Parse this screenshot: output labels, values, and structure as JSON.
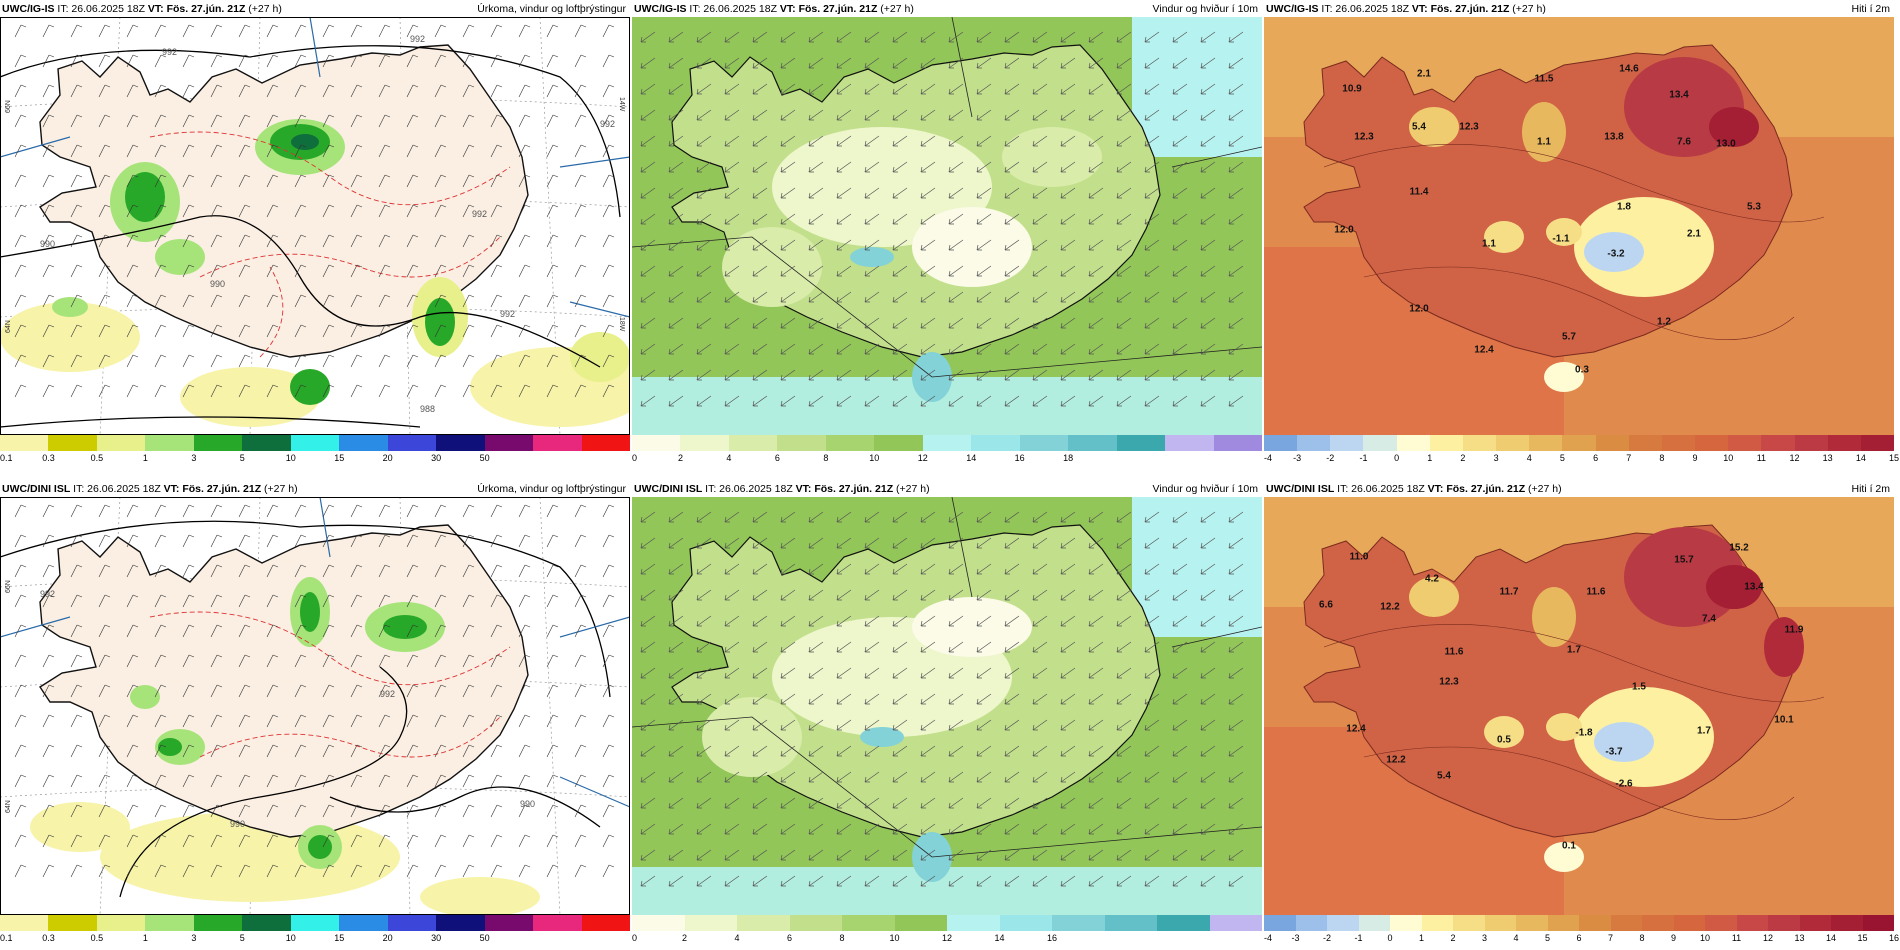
{
  "colors": {
    "land": "#fbeee2",
    "sea": "#ffffff",
    "wind_sea": "#8fc04a",
    "temp_sea": "#e07a48"
  },
  "icon_names": [
    "wind-barb-icon",
    "wind-arrow-icon"
  ],
  "panels": [
    {
      "model": "UWC/IG-IS",
      "it": "IT: 26.06.2025 18Z",
      "vt_label": "VT:",
      "vt": "Fös. 27.jún. 21Z",
      "lead": "(+27 h)",
      "title": "Úrkoma, vindur og loftþrýstingur",
      "colorbar": {
        "colors": [
          "#f7f3a8",
          "#cccc00",
          "#e8f08c",
          "#a6e47a",
          "#28a828",
          "#0e6e3c",
          "#33f0e8",
          "#2b8ce6",
          "#3c46d8",
          "#10107a",
          "#780a6e",
          "#e8287c",
          "#f01414"
        ],
        "ticks": [
          "0.1",
          "0.3",
          "0.5",
          "1",
          "3",
          "5",
          "10",
          "15",
          "20",
          "30",
          "50"
        ]
      },
      "pressure_labels": [
        "992",
        "992",
        "992",
        "992",
        "992",
        "990",
        "990",
        "988"
      ],
      "axis_labels": [
        "66N",
        "65N",
        "64N",
        "24W",
        "16W",
        "14W",
        "18W",
        "20W"
      ]
    },
    {
      "model": "UWC/IG-IS",
      "it": "IT: 26.06.2025 18Z",
      "vt_label": "VT:",
      "vt": "Fös. 27.jún. 21Z",
      "lead": "(+27 h)",
      "title": "Vindur og hviður í 10m",
      "colorbar": {
        "colors": [
          "#fbfbe8",
          "#eef6cc",
          "#d9ecaa",
          "#c2e08c",
          "#a8d470",
          "#92c658",
          "#b6f2f0",
          "#9ae6e8",
          "#82d2d8",
          "#64c0c8",
          "#3aa8ac",
          "#c2b6f0",
          "#a08ae0"
        ],
        "ticks": [
          "0",
          "2",
          "4",
          "6",
          "8",
          "10",
          "12",
          "14",
          "16",
          "18"
        ]
      }
    },
    {
      "model": "UWC/IG-IS",
      "it": "IT: 26.06.2025 18Z",
      "vt_label": "VT:",
      "vt": "Fös. 27.jún. 21Z",
      "lead": "(+27 h)",
      "title": "Hiti í 2m",
      "colorbar": {
        "colors": [
          "#7aa6e0",
          "#9cc0ea",
          "#bcd6f2",
          "#d8ece6",
          "#fffbd2",
          "#fdf0a0",
          "#f6de86",
          "#f0cc70",
          "#e8b85e",
          "#e0a24e",
          "#d98c42",
          "#d67a40",
          "#d6703e",
          "#d6663e",
          "#d05a44",
          "#c84848",
          "#bc3a44",
          "#b02a3a",
          "#a41e34"
        ],
        "ticks": [
          "-4",
          "-3",
          "-2",
          "-1",
          "0",
          "1",
          "2",
          "3",
          "4",
          "5",
          "6",
          "7",
          "8",
          "9",
          "10",
          "11",
          "12",
          "13",
          "14",
          "15"
        ]
      },
      "values": [
        "2.1",
        "10.9",
        "12.3",
        "5.4",
        "12.3",
        "11.5",
        "1.1",
        "14.6",
        "13.4",
        "13.8",
        "7.6",
        "13.0",
        "11.4",
        "1.8",
        "5.3",
        "12.0",
        "1.1",
        "-1.1",
        "-3.2",
        "2.1",
        "12.0",
        "1.2",
        "12.4",
        "5.7",
        "0.3"
      ]
    },
    {
      "model": "UWC/DINI ISL",
      "it": "IT: 26.06.2025 18Z",
      "vt_label": "VT:",
      "vt": "Fös. 27.jún. 21Z",
      "lead": "(+27 h)",
      "title": "Úrkoma, vindur og loftþrýstingur",
      "colorbar": {
        "colors": [
          "#f7f3a8",
          "#cccc00",
          "#e8f08c",
          "#a6e47a",
          "#28a828",
          "#0e6e3c",
          "#33f0e8",
          "#2b8ce6",
          "#3c46d8",
          "#10107a",
          "#780a6e",
          "#e8287c",
          "#f01414"
        ],
        "ticks": [
          "0.1",
          "0.3",
          "0.5",
          "1",
          "3",
          "5",
          "10",
          "15",
          "20",
          "30",
          "50"
        ]
      },
      "pressure_labels": [
        "992",
        "992",
        "990",
        "990"
      ],
      "axis_labels": [
        "66N",
        "65N",
        "64N",
        "24W",
        "16W",
        "14W",
        "18W",
        "20W"
      ]
    },
    {
      "model": "UWC/DINI ISL",
      "it": "IT: 26.06.2025 18Z",
      "vt_label": "VT:",
      "vt": "Fös. 27.jún. 21Z",
      "lead": "(+27 h)",
      "title": "Vindur og hviður í 10m",
      "colorbar": {
        "colors": [
          "#fbfbe8",
          "#eef6cc",
          "#d9ecaa",
          "#c2e08c",
          "#a8d470",
          "#92c658",
          "#b6f2f0",
          "#9ae6e8",
          "#82d2d8",
          "#64c0c8",
          "#3aa8ac",
          "#c2b6f0"
        ],
        "ticks": [
          "0",
          "2",
          "4",
          "6",
          "8",
          "10",
          "12",
          "14",
          "16"
        ]
      }
    },
    {
      "model": "UWC/DINI ISL",
      "it": "IT: 26.06.2025 18Z",
      "vt_label": "VT:",
      "vt": "Fös. 27.jún. 21Z",
      "lead": "(+27 h)",
      "title": "Hiti í 2m",
      "colorbar": {
        "colors": [
          "#7aa6e0",
          "#9cc0ea",
          "#bcd6f2",
          "#d8ece6",
          "#fffbd2",
          "#fdf0a0",
          "#f6de86",
          "#f0cc70",
          "#e8b85e",
          "#e0a24e",
          "#d98c42",
          "#d67a40",
          "#d6703e",
          "#d6663e",
          "#d05a44",
          "#c84848",
          "#bc3a44",
          "#b02a3a",
          "#a41e34",
          "#981430"
        ],
        "ticks": [
          "-4",
          "-3",
          "-2",
          "-1",
          "0",
          "1",
          "2",
          "3",
          "4",
          "5",
          "6",
          "7",
          "8",
          "9",
          "10",
          "11",
          "12",
          "13",
          "14",
          "15",
          "16"
        ]
      },
      "values": [
        "11.0",
        "4.2",
        "6.6",
        "12.2",
        "11.7",
        "11.6",
        "15.7",
        "15.2",
        "13.4",
        "11.6",
        "7.4",
        "1.7",
        "11.9",
        "12.3",
        "1.5",
        "12.4",
        "0.5",
        "-1.8",
        "-3.7",
        "1.7",
        "10.1",
        "12.2",
        "5.4",
        "-2.6",
        "0.1"
      ]
    }
  ]
}
